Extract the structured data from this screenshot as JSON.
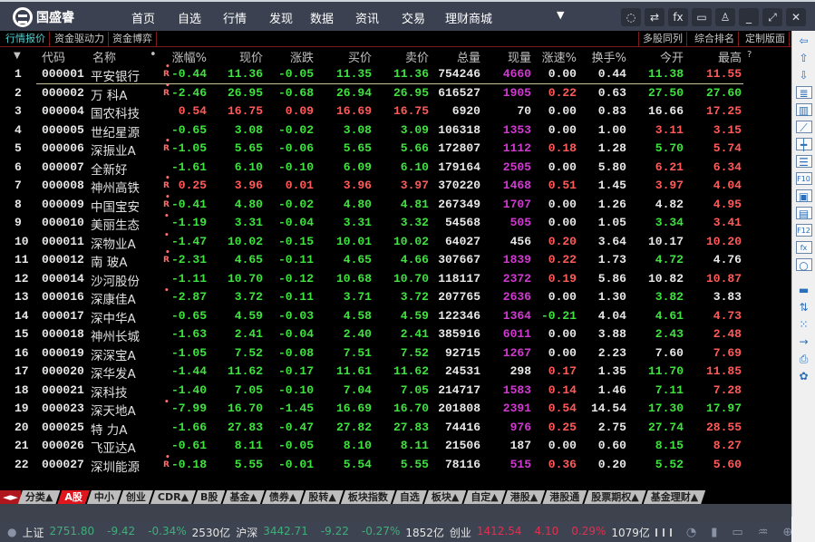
{
  "app": {
    "logo_text": "国盛睿",
    "nav": [
      "首页",
      "自选",
      "行情",
      "发现",
      "数据",
      "资讯",
      "交易",
      "理财商城"
    ],
    "window_icons": [
      "chat-icon",
      "settings-sliders-icon",
      "formula-icon",
      "monitor-icon",
      "skin-icon",
      "minimize-icon",
      "maximize-icon",
      "close-icon"
    ]
  },
  "subtabs": {
    "left": [
      "行情报价",
      "资金驱动力",
      "资金博弈"
    ],
    "right": [
      "多股同列",
      "综合排名",
      "定制版面"
    ]
  },
  "columns": {
    "sort": "▼",
    "code": "代码",
    "name": "名称",
    "dot": "•",
    "pct": "涨幅%",
    "price": "现价",
    "chg": "涨跌",
    "bid": "买价",
    "ask": "卖价",
    "vol": "总量",
    "cur": "现量",
    "speed": "涨速%",
    "turnover": "换手%",
    "open": "今开",
    "high": "最高",
    "more": "?"
  },
  "colors": {
    "up": "#ff5a5a",
    "down": "#3fe23f",
    "flat": "#e8e8e8",
    "cur_vol": "#d03ad0",
    "active_tab": "#e0161e"
  },
  "rows": [
    {
      "no": "1",
      "code": "000001",
      "name": "平安银行",
      "flag": "R",
      "pct": "-0.44",
      "price": "11.36",
      "chg": "-0.05",
      "bid": "11.35",
      "ask": "11.36",
      "vol": "754246",
      "cur": "4660",
      "cur_color": "m",
      "speed": "0.00",
      "turnover": "0.44",
      "open": "11.38",
      "high": "11.55"
    },
    {
      "no": "2",
      "code": "000002",
      "name": "万 科A",
      "flag": "R",
      "pct": "-2.46",
      "price": "26.95",
      "chg": "-0.68",
      "bid": "26.94",
      "ask": "26.95",
      "vol": "616527",
      "cur": "1905",
      "cur_color": "m",
      "speed": "0.22",
      "turnover": "0.63",
      "open": "27.50",
      "high": "27.60"
    },
    {
      "no": "3",
      "code": "000004",
      "name": "国农科技",
      "flag": "",
      "pct": "0.54",
      "price": "16.75",
      "chg": "0.09",
      "bid": "16.69",
      "ask": "16.75",
      "vol": "6920",
      "cur": "70",
      "cur_color": "w",
      "speed": "0.00",
      "turnover": "0.83",
      "open": "16.66",
      "high": "17.25"
    },
    {
      "no": "4",
      "code": "000005",
      "name": "世纪星源",
      "flag": "",
      "pct": "-0.65",
      "price": "3.08",
      "chg": "-0.02",
      "bid": "3.08",
      "ask": "3.09",
      "vol": "106318",
      "cur": "1353",
      "cur_color": "m",
      "speed": "0.00",
      "turnover": "1.00",
      "open": "3.11",
      "high": "3.15"
    },
    {
      "no": "5",
      "code": "000006",
      "name": "深振业A",
      "flag": "R",
      "pct": "-1.05",
      "price": "5.65",
      "chg": "-0.06",
      "bid": "5.65",
      "ask": "5.66",
      "vol": "172807",
      "cur": "1112",
      "cur_color": "m",
      "speed": "0.18",
      "turnover": "1.28",
      "open": "5.70",
      "high": "5.74"
    },
    {
      "no": "6",
      "code": "000007",
      "name": "全新好",
      "flag": "",
      "pct": "-1.61",
      "price": "6.10",
      "chg": "-0.10",
      "bid": "6.09",
      "ask": "6.10",
      "vol": "179164",
      "cur": "2505",
      "cur_color": "m",
      "speed": "0.00",
      "turnover": "5.80",
      "open": "6.21",
      "high": "6.34"
    },
    {
      "no": "7",
      "code": "000008",
      "name": "神州高铁",
      "flag": "R",
      "pct": "0.25",
      "price": "3.96",
      "chg": "0.01",
      "bid": "3.96",
      "ask": "3.97",
      "vol": "370220",
      "cur": "1468",
      "cur_color": "m",
      "speed": "0.51",
      "turnover": "1.45",
      "open": "3.97",
      "high": "4.04"
    },
    {
      "no": "8",
      "code": "000009",
      "name": "中国宝安",
      "flag": "R",
      "pct": "-0.41",
      "price": "4.80",
      "chg": "-0.02",
      "bid": "4.80",
      "ask": "4.81",
      "vol": "267349",
      "cur": "1707",
      "cur_color": "m",
      "speed": "0.00",
      "turnover": "1.26",
      "open": "4.82",
      "high": "4.95"
    },
    {
      "no": "9",
      "code": "000010",
      "name": "美丽生态",
      "flag": "dot",
      "pct": "-1.19",
      "price": "3.31",
      "chg": "-0.04",
      "bid": "3.31",
      "ask": "3.32",
      "vol": "54568",
      "cur": "505",
      "cur_color": "m",
      "speed": "0.00",
      "turnover": "1.05",
      "open": "3.34",
      "high": "3.41"
    },
    {
      "no": "10",
      "code": "000011",
      "name": "深物业A",
      "flag": "dot",
      "pct": "-1.47",
      "price": "10.02",
      "chg": "-0.15",
      "bid": "10.01",
      "ask": "10.02",
      "vol": "64027",
      "cur": "456",
      "cur_color": "w",
      "speed": "0.20",
      "turnover": "3.64",
      "open": "10.17",
      "high": "10.20"
    },
    {
      "no": "11",
      "code": "000012",
      "name": "南 玻A",
      "flag": "R",
      "pct": "-2.31",
      "price": "4.65",
      "chg": "-0.11",
      "bid": "4.65",
      "ask": "4.66",
      "vol": "307667",
      "cur": "1839",
      "cur_color": "m",
      "speed": "0.22",
      "turnover": "1.73",
      "open": "4.72",
      "high": "4.76"
    },
    {
      "no": "12",
      "code": "000014",
      "name": "沙河股份",
      "flag": "",
      "pct": "-1.11",
      "price": "10.70",
      "chg": "-0.12",
      "bid": "10.68",
      "ask": "10.70",
      "vol": "118117",
      "cur": "2372",
      "cur_color": "m",
      "speed": "0.19",
      "turnover": "5.86",
      "open": "10.82",
      "high": "10.87"
    },
    {
      "no": "13",
      "code": "000016",
      "name": "深康佳A",
      "flag": "dot",
      "pct": "-2.87",
      "price": "3.72",
      "chg": "-0.11",
      "bid": "3.71",
      "ask": "3.72",
      "vol": "207765",
      "cur": "2636",
      "cur_color": "m",
      "speed": "0.00",
      "turnover": "1.30",
      "open": "3.82",
      "high": "3.83"
    },
    {
      "no": "14",
      "code": "000017",
      "name": "深中华A",
      "flag": "",
      "pct": "-0.65",
      "price": "4.59",
      "chg": "-0.03",
      "bid": "4.58",
      "ask": "4.59",
      "vol": "122346",
      "cur": "1364",
      "cur_color": "m",
      "speed": "-0.21",
      "turnover": "4.04",
      "open": "4.61",
      "high": "4.73"
    },
    {
      "no": "15",
      "code": "000018",
      "name": "神州长城",
      "flag": "",
      "pct": "-1.63",
      "price": "2.41",
      "chg": "-0.04",
      "bid": "2.40",
      "ask": "2.41",
      "vol": "385916",
      "cur": "6011",
      "cur_color": "m",
      "speed": "0.00",
      "turnover": "3.88",
      "open": "2.43",
      "high": "2.48"
    },
    {
      "no": "16",
      "code": "000019",
      "name": "深深宝A",
      "flag": "",
      "pct": "-1.05",
      "price": "7.52",
      "chg": "-0.08",
      "bid": "7.51",
      "ask": "7.52",
      "vol": "92715",
      "cur": "1267",
      "cur_color": "m",
      "speed": "0.00",
      "turnover": "2.23",
      "open": "7.60",
      "high": "7.69"
    },
    {
      "no": "17",
      "code": "000020",
      "name": "深华发A",
      "flag": "",
      "pct": "-1.44",
      "price": "11.62",
      "chg": "-0.17",
      "bid": "11.61",
      "ask": "11.62",
      "vol": "24531",
      "cur": "298",
      "cur_color": "w",
      "speed": "0.17",
      "turnover": "1.35",
      "open": "11.70",
      "high": "11.85"
    },
    {
      "no": "18",
      "code": "000021",
      "name": "深科技",
      "flag": "",
      "pct": "-1.40",
      "price": "7.05",
      "chg": "-0.10",
      "bid": "7.04",
      "ask": "7.05",
      "vol": "214717",
      "cur": "1583",
      "cur_color": "m",
      "speed": "0.14",
      "turnover": "1.46",
      "open": "7.11",
      "high": "7.28"
    },
    {
      "no": "19",
      "code": "000023",
      "name": "深天地A",
      "flag": "dot",
      "pct": "-7.99",
      "price": "16.70",
      "chg": "-1.45",
      "bid": "16.69",
      "ask": "16.70",
      "vol": "201808",
      "cur": "2391",
      "cur_color": "m",
      "speed": "0.54",
      "turnover": "14.54",
      "open": "17.30",
      "high": "17.97"
    },
    {
      "no": "20",
      "code": "000025",
      "name": "特 力A",
      "flag": "",
      "pct": "-1.66",
      "price": "27.83",
      "chg": "-0.47",
      "bid": "27.82",
      "ask": "27.83",
      "vol": "74416",
      "cur": "976",
      "cur_color": "m",
      "speed": "0.25",
      "turnover": "2.75",
      "open": "27.74",
      "high": "28.55"
    },
    {
      "no": "21",
      "code": "000026",
      "name": "飞亚达A",
      "flag": "",
      "pct": "-0.61",
      "price": "8.11",
      "chg": "-0.05",
      "bid": "8.10",
      "ask": "8.11",
      "vol": "21506",
      "cur": "187",
      "cur_color": "w",
      "speed": "0.00",
      "turnover": "0.60",
      "open": "8.15",
      "high": "8.27"
    },
    {
      "no": "22",
      "code": "000027",
      "name": "深圳能源",
      "flag": "R",
      "pct": "-0.18",
      "price": "5.55",
      "chg": "-0.01",
      "bid": "5.54",
      "ask": "5.55",
      "vol": "78116",
      "cur": "515",
      "cur_color": "m",
      "speed": "0.36",
      "turnover": "0.20",
      "open": "5.52",
      "high": "5.60"
    }
  ],
  "bottom_tabs": {
    "arrows": "◄►",
    "items": [
      "分类▲",
      "A股",
      "中小",
      "创业",
      "CDR▲",
      "B股",
      "基金▲",
      "债券▲",
      "股转▲",
      "板块指数",
      "自选",
      "板块▲",
      "自定▲",
      "港股▲",
      "港股通",
      "股票期权▲",
      "基金理财▲"
    ],
    "active": "A股"
  },
  "status": {
    "indices": [
      {
        "name": "上证",
        "value": "2751.80",
        "chg": "-9.42",
        "pct": "-0.34%",
        "amount": "2530亿",
        "dir": "down"
      },
      {
        "name": "沪深",
        "value": "3442.71",
        "chg": "-9.22",
        "pct": "-0.27%",
        "amount": "1852亿",
        "dir": "down"
      },
      {
        "name": "创业",
        "value": "1412.54",
        "chg": "4.10",
        "pct": "0.29%",
        "amount": "1079亿",
        "dir": "up"
      }
    ]
  },
  "sidebar_icons": [
    "back-arrow-icon",
    "page-up-icon",
    "page-down-icon",
    "quote-list-icon",
    "multi-column-icon",
    "trend-chart-icon",
    "kline-icon",
    "f10-list-icon",
    "f10-icon",
    "info-icon",
    "notes-icon",
    "f12-icon",
    "formula-icon",
    "circle-icon",
    "folder-icon",
    "sort-icon",
    "expand-icon",
    "exit-icon",
    "print-icon",
    "settings-icon"
  ]
}
